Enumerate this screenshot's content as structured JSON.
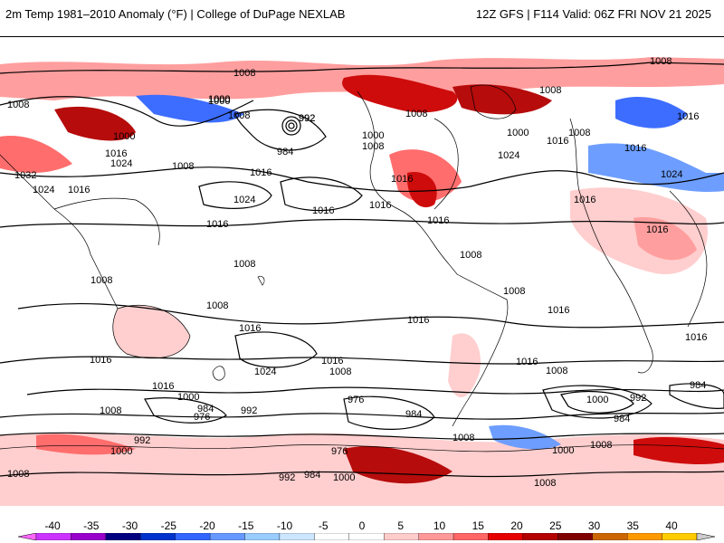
{
  "header": {
    "title_left": "2m Temp 1981–2010 Anomaly (°F) | College of DuPage NEXLAB",
    "title_right": "12Z GFS | F114 Valid: 06Z FRI NOV 21 2025"
  },
  "map": {
    "isobar_labels": [
      "1008",
      "1000",
      "1008",
      "992",
      "1008",
      "1016",
      "1008",
      "1000",
      "1016",
      "1008",
      "1016",
      "1024",
      "1000",
      "1032",
      "1024",
      "1016",
      "1008",
      "984",
      "1016",
      "1024",
      "1024",
      "1016",
      "1016",
      "992",
      "1000",
      "1008",
      "1000",
      "1008",
      "1016",
      "1008",
      "1024",
      "1016",
      "1016",
      "1016",
      "1008",
      "1016",
      "1000",
      "1016",
      "1016",
      "1008",
      "1016",
      "1008",
      "1008",
      "1016",
      "1016",
      "1016",
      "1008",
      "1016",
      "1024",
      "1016",
      "1008",
      "1016",
      "1000",
      "984",
      "992",
      "976",
      "976",
      "984",
      "1008",
      "1000",
      "1000",
      "992",
      "984",
      "976",
      "984",
      "992",
      "1000",
      "992",
      "1008",
      "1008",
      "984",
      "1000",
      "1008",
      "1008",
      "1008"
    ],
    "colors": {
      "land_outline": "#000000",
      "isobar": "#000000",
      "ocean_neutral": "#ffffff"
    }
  },
  "colorbar": {
    "ticks": [
      "-40",
      "-35",
      "-30",
      "-25",
      "-20",
      "-15",
      "-10",
      "-5",
      "0",
      "5",
      "10",
      "15",
      "20",
      "25",
      "30",
      "35",
      "40"
    ],
    "colors": [
      "#ff66ff",
      "#cc33ff",
      "#9900cc",
      "#000080",
      "#0033cc",
      "#3366ff",
      "#6699ff",
      "#99ccff",
      "#cce6ff",
      "#ffffff",
      "#ffffff",
      "#ffcccc",
      "#ff9999",
      "#ff6666",
      "#e60000",
      "#b30000",
      "#800000",
      "#cc6600",
      "#ff9900",
      "#ffcc00",
      "#cccccc"
    ]
  }
}
